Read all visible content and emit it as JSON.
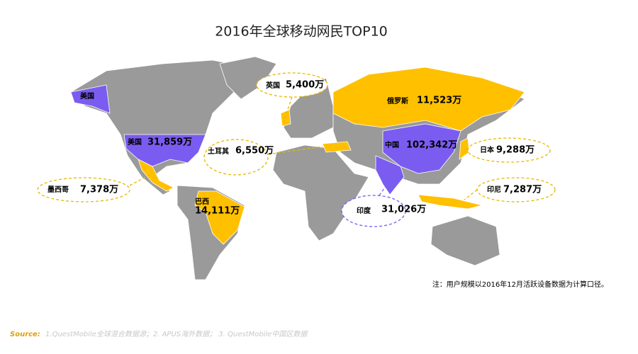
{
  "title": "2016年全球移动网民TOP10",
  "callouts": [
    {
      "name": "美国",
      "value": "31,859万"
    },
    {
      "name": "美国"
    },
    {
      "name": "英国",
      "value": "5,400万"
    },
    {
      "name": "俄罗斯",
      "value": "11,523万"
    },
    {
      "name": "土耳其",
      "value": "6,550万"
    },
    {
      "name": "中国",
      "value": "102,342万"
    },
    {
      "name": "日本",
      "value": "9,288万"
    },
    {
      "name": "墨西哥",
      "value": "7,378万"
    },
    {
      "name": "巴西",
      "value": "14,111万"
    },
    {
      "name": "印度",
      "value": "31,026万"
    },
    {
      "name": "印尼",
      "value": "7,287万"
    }
  ],
  "note": "注：用户规模以2016年12月活跃设备数据为计算口径。",
  "source": {
    "label": "Source:",
    "text": "1.QuestMobile全球混合数据源；2. APUS海外数据； 3. QuestMobile中国区数据"
  }
}
